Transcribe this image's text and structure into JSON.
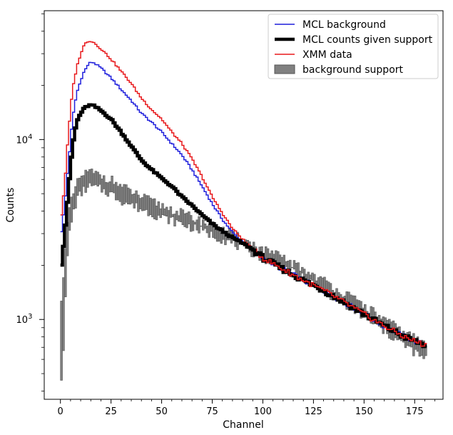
{
  "chart_data": {
    "type": "line",
    "title": "",
    "xlabel": "Channel",
    "ylabel": "Counts",
    "xlim": [
      -8,
      189
    ],
    "ylim": [
      360,
      52000
    ],
    "yscale": "log",
    "grid": false,
    "legend_position": "top-right",
    "x_ticks": [
      {
        "value": 0,
        "label": "0"
      },
      {
        "value": 25,
        "label": "25"
      },
      {
        "value": 50,
        "label": "50"
      },
      {
        "value": 75,
        "label": "75"
      },
      {
        "value": 100,
        "label": "100"
      },
      {
        "value": 125,
        "label": "125"
      },
      {
        "value": 150,
        "label": "150"
      },
      {
        "value": 175,
        "label": "175"
      }
    ],
    "y_ticks": [
      {
        "value": 1000,
        "label": "10",
        "exponent": "3"
      },
      {
        "value": 10000,
        "label": "10",
        "exponent": "4"
      }
    ],
    "channels": [
      0,
      180
    ],
    "series": [
      {
        "name": "MCL background",
        "color": "#1f1fdc",
        "style": "step",
        "knots": [
          [
            0,
            2800
          ],
          [
            2,
            4200
          ],
          [
            4,
            7500
          ],
          [
            6,
            13000
          ],
          [
            8,
            18000
          ],
          [
            11,
            23000
          ],
          [
            14,
            26500
          ],
          [
            16,
            27000
          ],
          [
            20,
            25000
          ],
          [
            25,
            22000
          ],
          [
            30,
            19000
          ],
          [
            35,
            16500
          ],
          [
            40,
            14000
          ],
          [
            45,
            12500
          ],
          [
            50,
            11000
          ],
          [
            55,
            9500
          ],
          [
            60,
            8200
          ],
          [
            65,
            6800
          ],
          [
            70,
            5500
          ],
          [
            75,
            4400
          ],
          [
            80,
            3600
          ],
          [
            85,
            3050
          ],
          [
            90,
            2700
          ],
          [
            95,
            2420
          ],
          [
            100,
            2200
          ],
          [
            110,
            1900
          ],
          [
            120,
            1650
          ],
          [
            130,
            1450
          ],
          [
            140,
            1250
          ],
          [
            150,
            1070
          ],
          [
            160,
            920
          ],
          [
            170,
            800
          ],
          [
            180,
            720
          ]
        ]
      },
      {
        "name": "MCL counts given support",
        "color": "#000000",
        "style": "thick-step",
        "knots": [
          [
            0,
            1800
          ],
          [
            2,
            2900
          ],
          [
            4,
            5200
          ],
          [
            6,
            9200
          ],
          [
            8,
            12500
          ],
          [
            10,
            14000
          ],
          [
            12,
            15000
          ],
          [
            14,
            15500
          ],
          [
            16,
            15500
          ],
          [
            18,
            15000
          ],
          [
            20,
            14500
          ],
          [
            25,
            13000
          ],
          [
            30,
            11000
          ],
          [
            35,
            9200
          ],
          [
            40,
            7700
          ],
          [
            45,
            6800
          ],
          [
            50,
            6100
          ],
          [
            55,
            5500
          ],
          [
            60,
            4800
          ],
          [
            65,
            4300
          ],
          [
            70,
            3800
          ],
          [
            75,
            3400
          ],
          [
            80,
            3100
          ],
          [
            85,
            2850
          ],
          [
            90,
            2650
          ],
          [
            95,
            2450
          ],
          [
            100,
            2200
          ],
          [
            110,
            1900
          ],
          [
            120,
            1650
          ],
          [
            130,
            1450
          ],
          [
            140,
            1250
          ],
          [
            150,
            1070
          ],
          [
            160,
            920
          ],
          [
            170,
            800
          ],
          [
            180,
            720
          ]
        ]
      },
      {
        "name": "XMM data",
        "color": "#e8191c",
        "style": "step",
        "knots": [
          [
            0,
            3400
          ],
          [
            2,
            5500
          ],
          [
            4,
            11000
          ],
          [
            6,
            19000
          ],
          [
            8,
            25000
          ],
          [
            10,
            30000
          ],
          [
            12,
            34000
          ],
          [
            14,
            35500
          ],
          [
            16,
            35000
          ],
          [
            20,
            32000
          ],
          [
            25,
            28000
          ],
          [
            30,
            24000
          ],
          [
            35,
            20500
          ],
          [
            40,
            17000
          ],
          [
            45,
            14700
          ],
          [
            50,
            13000
          ],
          [
            55,
            11000
          ],
          [
            60,
            9500
          ],
          [
            65,
            7800
          ],
          [
            70,
            6200
          ],
          [
            75,
            4800
          ],
          [
            80,
            3900
          ],
          [
            85,
            3200
          ],
          [
            90,
            2800
          ],
          [
            95,
            2460
          ],
          [
            100,
            2200
          ],
          [
            110,
            1900
          ],
          [
            120,
            1650
          ],
          [
            130,
            1450
          ],
          [
            140,
            1250
          ],
          [
            150,
            1070
          ],
          [
            160,
            920
          ],
          [
            170,
            800
          ],
          [
            180,
            720
          ]
        ]
      },
      {
        "name": "background support",
        "color": "#808080",
        "style": "band",
        "low_knots": [
          [
            0,
            420
          ],
          [
            1,
            550
          ],
          [
            2,
            900
          ],
          [
            3,
            1800
          ],
          [
            4,
            2800
          ],
          [
            6,
            3800
          ],
          [
            8,
            4600
          ],
          [
            10,
            5000
          ],
          [
            12,
            5300
          ],
          [
            15,
            5500
          ],
          [
            20,
            5300
          ],
          [
            25,
            5000
          ],
          [
            30,
            4600
          ],
          [
            40,
            4100
          ],
          [
            50,
            3700
          ],
          [
            60,
            3400
          ],
          [
            70,
            3100
          ],
          [
            80,
            2800
          ],
          [
            90,
            2500
          ],
          [
            100,
            2200
          ],
          [
            110,
            1950
          ],
          [
            120,
            1700
          ],
          [
            130,
            1450
          ],
          [
            140,
            1230
          ],
          [
            150,
            1020
          ],
          [
            160,
            860
          ],
          [
            170,
            720
          ],
          [
            180,
            600
          ]
        ],
        "high_knots": [
          [
            0,
            1000
          ],
          [
            1,
            1500
          ],
          [
            2,
            2200
          ],
          [
            3,
            3000
          ],
          [
            4,
            3800
          ],
          [
            6,
            4800
          ],
          [
            8,
            5600
          ],
          [
            10,
            6200
          ],
          [
            12,
            6500
          ],
          [
            15,
            6600
          ],
          [
            20,
            6300
          ],
          [
            25,
            6000
          ],
          [
            30,
            5500
          ],
          [
            40,
            4800
          ],
          [
            50,
            4300
          ],
          [
            60,
            3900
          ],
          [
            70,
            3500
          ],
          [
            80,
            3150
          ],
          [
            90,
            2800
          ],
          [
            100,
            2450
          ],
          [
            110,
            2200
          ],
          [
            120,
            1900
          ],
          [
            130,
            1650
          ],
          [
            140,
            1400
          ],
          [
            150,
            1200
          ],
          [
            160,
            1000
          ],
          [
            170,
            850
          ],
          [
            180,
            740
          ]
        ]
      }
    ]
  }
}
